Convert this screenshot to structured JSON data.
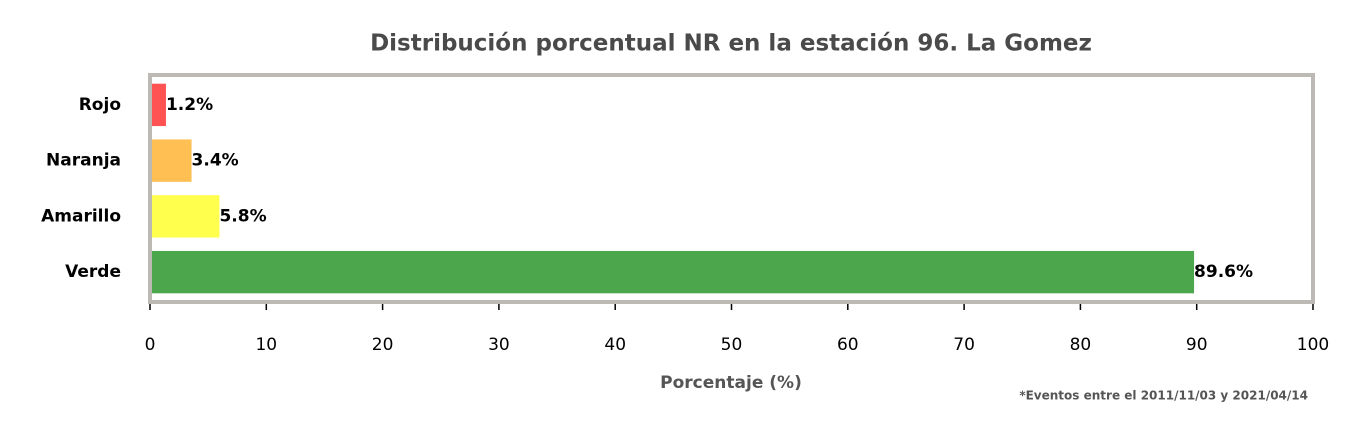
{
  "chart_data": {
    "type": "barh",
    "title": "Distribución porcentual NR en la estación 96. La Gomez",
    "xlabel": "Porcentaje (%)",
    "footnote": "*Eventos entre el 2011/11/03 y 2021/04/14",
    "categories": [
      "Rojo",
      "Naranja",
      "Amarillo",
      "Verde"
    ],
    "values": [
      1.2,
      3.4,
      5.8,
      89.6
    ],
    "value_labels": [
      "1.2%",
      "3.4%",
      "5.8%",
      "89.6%"
    ],
    "colors": [
      "#ff5252",
      "#ffbf52",
      "#ffff4d",
      "#4ca64c"
    ],
    "xlim": [
      0,
      100
    ],
    "xticks": [
      0,
      10,
      20,
      30,
      40,
      50,
      60,
      70,
      80,
      90,
      100
    ],
    "grid": false
  }
}
